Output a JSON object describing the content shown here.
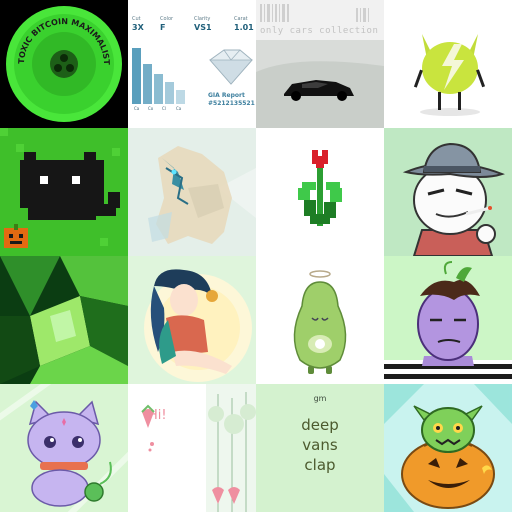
{
  "gallery": {
    "tiles": [
      {
        "name": "toxic-bitcoin-maximalist",
        "ring_text": "TOXIC BITCOIN MAXIMALIST",
        "colors": {
          "bg": "#000000",
          "accent": "#39d62f"
        }
      },
      {
        "name": "gia-diamond-report",
        "stats": [
          {
            "label": "Cut",
            "value": "3X"
          },
          {
            "label": "Color",
            "value": "F"
          },
          {
            "label": "Clarity",
            "value": "VS1"
          },
          {
            "label": "Carat",
            "value": "1.01"
          }
        ],
        "report_title": "GIA Report",
        "report_number": "#5212135521",
        "axis_labels": [
          "Ca",
          "Co",
          "Cl",
          "Ca"
        ],
        "colors": {
          "accent": "#1f5f7a"
        }
      },
      {
        "name": "only-cars-collection",
        "title": "only cars collection"
      },
      {
        "name": "green-cat-character"
      },
      {
        "name": "pixel-black-cat"
      },
      {
        "name": "crystal-wolf"
      },
      {
        "name": "pixel-tulip"
      },
      {
        "name": "smoking-fedora-guy"
      },
      {
        "name": "green-abstract-glass"
      },
      {
        "name": "anime-girl"
      },
      {
        "name": "angel-avocado"
      },
      {
        "name": "purple-zombie"
      },
      {
        "name": "purple-cat"
      },
      {
        "name": "hi-strawberry",
        "greeting": "Hi!"
      },
      {
        "name": "gm-deep-vans-clap",
        "greeting": "gm",
        "words": [
          "deep",
          "vans",
          "clap"
        ]
      },
      {
        "name": "pumpkin-goblin"
      }
    ]
  }
}
